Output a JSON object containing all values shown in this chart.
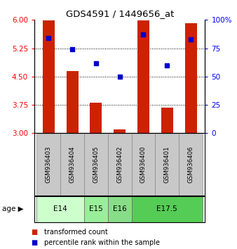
{
  "title": "GDS4591 / 1449656_at",
  "samples": [
    "GSM936403",
    "GSM936404",
    "GSM936405",
    "GSM936402",
    "GSM936400",
    "GSM936401",
    "GSM936406"
  ],
  "transformed_counts": [
    5.98,
    4.65,
    3.8,
    3.1,
    5.98,
    3.68,
    5.92
  ],
  "percentile_ranks": [
    84,
    74,
    62,
    50,
    87,
    60,
    83
  ],
  "y_min": 3.0,
  "y_max": 6.0,
  "y_ticks": [
    3.0,
    3.75,
    4.5,
    5.25,
    6.0
  ],
  "y2_ticks": [
    0,
    25,
    50,
    75,
    100
  ],
  "bar_color": "#cc2200",
  "dot_color": "#0000cc",
  "age_groups": [
    {
      "label": "E14",
      "start": 0,
      "end": 1,
      "color": "#ccffcc"
    },
    {
      "label": "E15",
      "start": 2,
      "end": 2,
      "color": "#99ee99"
    },
    {
      "label": "E16",
      "start": 3,
      "end": 3,
      "color": "#88dd88"
    },
    {
      "label": "E17.5",
      "start": 4,
      "end": 6,
      "color": "#55cc55"
    }
  ],
  "bar_width": 0.5,
  "sample_box_color": "#c8c8c8",
  "legend_tc_color": "#cc2200",
  "legend_pr_color": "#0000cc"
}
